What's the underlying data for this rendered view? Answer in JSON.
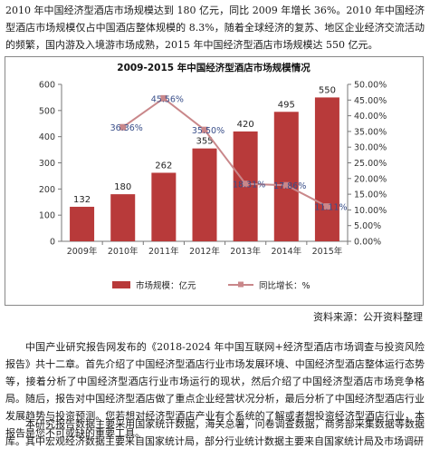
{
  "intro_text": "2010 年中国经济型酒店市场规模达到 180 亿元，同比 2009 年增长 36%。2010 年中国经济型酒店市场规模仅占中国酒店整体规模的 8.3%，随着全球经济的复苏、地区企业经济交流活动的频繁，国内游及入境游市场成熟，2015 年中国经济型酒店市场规模达 550 亿元。",
  "chart_data": {
    "type": "bar",
    "title": "2009-2015 年中国经济型酒店市场规模情况",
    "categories": [
      "2009年",
      "2010年",
      "2011年",
      "2012年",
      "2013年",
      "2014年",
      "2015年"
    ],
    "series": [
      {
        "name": "市场规模：亿元",
        "type": "bar",
        "axis": "left",
        "values": [
          132,
          180,
          262,
          355,
          420,
          495,
          550
        ],
        "color": "#b83a3a"
      },
      {
        "name": "同比增长：%",
        "type": "line",
        "axis": "right",
        "values": [
          null,
          36.36,
          45.56,
          35.5,
          18.31,
          17.86,
          11.11
        ],
        "color": "#c9878a"
      }
    ],
    "bar_labels": [
      "132",
      "180",
      "262",
      "355",
      "420",
      "495",
      "550"
    ],
    "line_labels": [
      "",
      "36.36%",
      "45.56%",
      "35.50%",
      "18.31%",
      "17.86%",
      "11.11%"
    ],
    "ylim_left": [
      0,
      600
    ],
    "left_ticks": [
      "0",
      "100",
      "200",
      "300",
      "400",
      "500",
      "600"
    ],
    "ylim_right": [
      0,
      50
    ],
    "right_ticks": [
      "0.00%",
      "5.00%",
      "10.00%",
      "15.00%",
      "20.00%",
      "25.00%",
      "30.00%",
      "35.00%",
      "40.00%",
      "45.00%",
      "50.00%"
    ],
    "grid": false,
    "legend": "bottom"
  },
  "source_text": "资料来源：公开资料整理",
  "body_text_1": "中国产业研究报告网发布的《2018-2024 年中国互联网+经济型酒店市场调查与投资风险报告》共十二章。首先介绍了中国经济型酒店行业市场发展环境、中国经济型酒店整体运行态势等，接着分析了中国经济型酒店行业市场运行的现状，然后介绍了中国经济型酒店市场竞争格局。随后，报告对中国经济型酒店做了重点企业经营状况分析，最后分析了中国经济型酒店行业发展趋势与投资预测。您若想对经济型酒店产业有个系统的了解或者想投资经济型酒店行业，本报告是您不可或缺的重要工具。",
  "body_text_2": "本研究报告数据主要采用国家统计数据，海关总署，问卷调查数据，商务部采集数据等数据库。其中宏观经济数据主要来自国家统计局，部分行业统计数据主要来自国家统计局及市场调研"
}
